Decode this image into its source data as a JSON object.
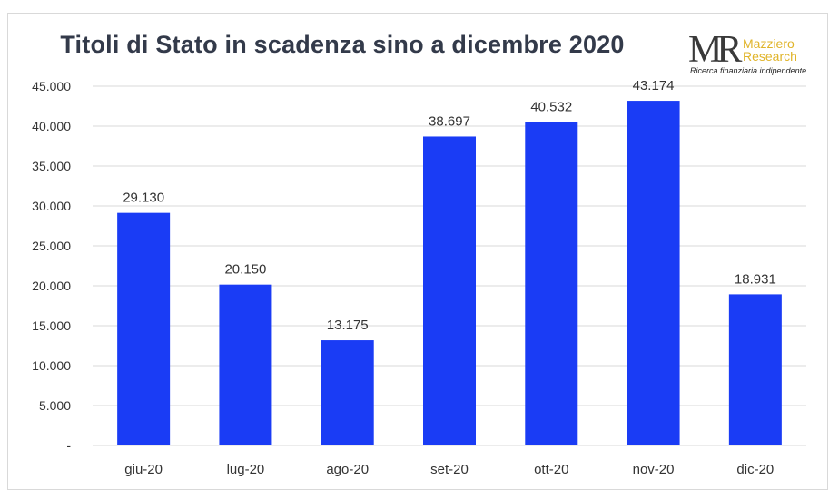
{
  "logo": {
    "mark": "MR",
    "name_line1": "Mazziero",
    "name_line2": "Research",
    "tagline": "Ricerca finanziaria indipendente"
  },
  "colors": {
    "bar": "#1a3cf5",
    "grid": "#d9d9d9",
    "text": "#333333",
    "title": "#333a4a",
    "logo_gold": "#e0b42a"
  },
  "chart_data": {
    "type": "bar",
    "title": "Titoli di Stato in scadenza sino a dicembre 2020",
    "xlabel": "",
    "ylabel": "",
    "categories": [
      "giu-20",
      "lug-20",
      "ago-20",
      "set-20",
      "ott-20",
      "nov-20",
      "dic-20"
    ],
    "values": [
      29130,
      20150,
      13175,
      38697,
      40532,
      43174,
      18931
    ],
    "value_labels": [
      "29.130",
      "20.150",
      "13.175",
      "38.697",
      "40.532",
      "43.174",
      "18.931"
    ],
    "ylim": [
      0,
      45000
    ],
    "yticks": [
      0,
      5000,
      10000,
      15000,
      20000,
      25000,
      30000,
      35000,
      40000,
      45000
    ],
    "ytick_labels": [
      "-",
      "5.000",
      "10.000",
      "15.000",
      "20.000",
      "25.000",
      "30.000",
      "35.000",
      "40.000",
      "45.000"
    ],
    "grid": true,
    "legend": "none"
  }
}
